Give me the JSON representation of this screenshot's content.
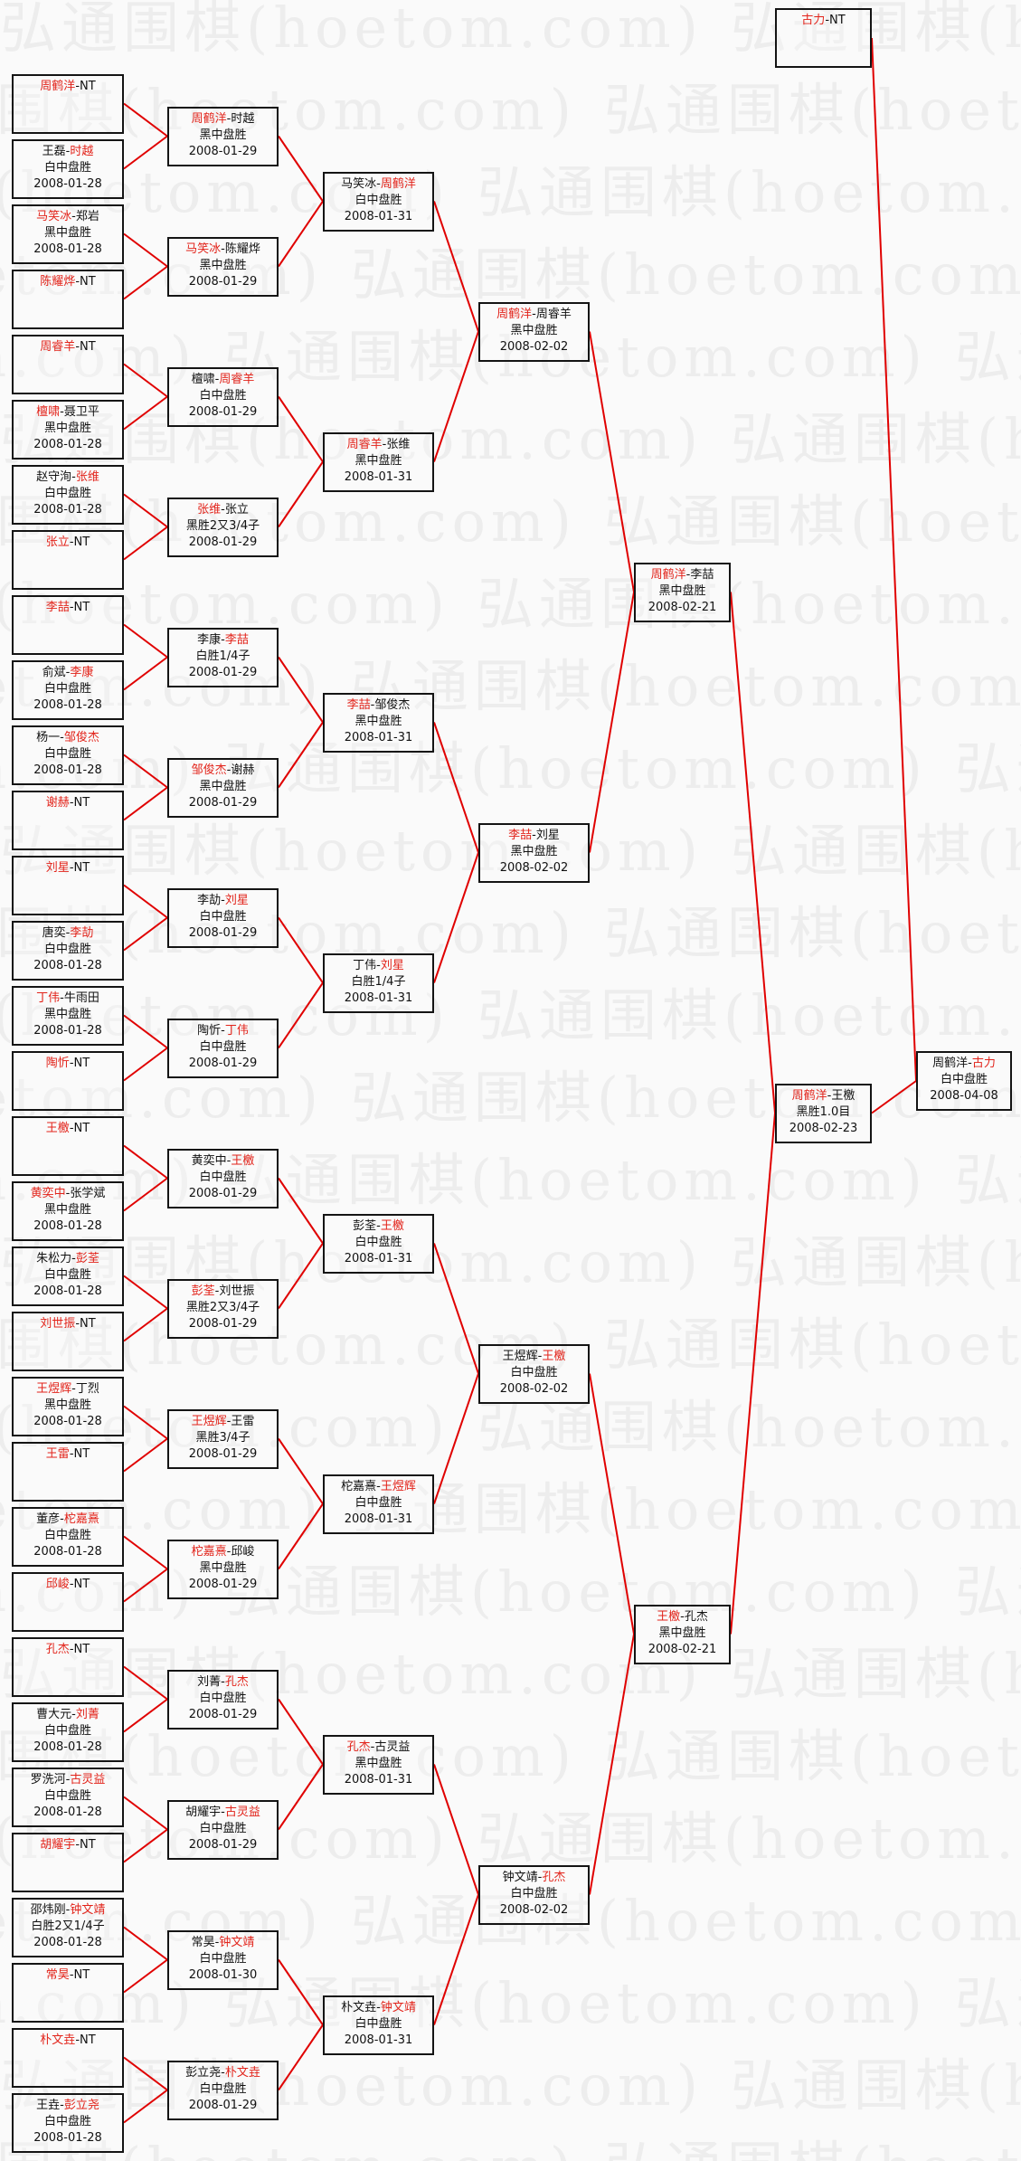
{
  "watermark": "弘通围棋(hoetom.com)",
  "colors": {
    "winner": "#e2231a",
    "connector": "#e00000",
    "border": "#141414"
  },
  "rounds": [
    [
      {
        "p1": "周鹤洋",
        "p2": "NT",
        "winner": 1,
        "result": "",
        "date": ""
      },
      {
        "p1": "王磊",
        "p2": "时越",
        "winner": 2,
        "result": "白中盘胜",
        "date": "2008-01-28"
      },
      {
        "p1": "马笑冰",
        "p2": "郑岩",
        "winner": 1,
        "result": "黑中盘胜",
        "date": "2008-01-28"
      },
      {
        "p1": "陈耀烨",
        "p2": "NT",
        "winner": 1,
        "result": "",
        "date": ""
      },
      {
        "p1": "周睿羊",
        "p2": "NT",
        "winner": 1,
        "result": "",
        "date": ""
      },
      {
        "p1": "檀啸",
        "p2": "聂卫平",
        "winner": 1,
        "result": "黑中盘胜",
        "date": "2008-01-28"
      },
      {
        "p1": "赵守洵",
        "p2": "张维",
        "winner": 2,
        "result": "白中盘胜",
        "date": "2008-01-28"
      },
      {
        "p1": "张立",
        "p2": "NT",
        "winner": 1,
        "result": "",
        "date": ""
      },
      {
        "p1": "李喆",
        "p2": "NT",
        "winner": 1,
        "result": "",
        "date": ""
      },
      {
        "p1": "俞斌",
        "p2": "李康",
        "winner": 2,
        "result": "白中盘胜",
        "date": "2008-01-28"
      },
      {
        "p1": "杨一",
        "p2": "邹俊杰",
        "winner": 2,
        "result": "白中盘胜",
        "date": "2008-01-28"
      },
      {
        "p1": "谢赫",
        "p2": "NT",
        "winner": 1,
        "result": "",
        "date": ""
      },
      {
        "p1": "刘星",
        "p2": "NT",
        "winner": 1,
        "result": "",
        "date": ""
      },
      {
        "p1": "唐奕",
        "p2": "李劼",
        "winner": 2,
        "result": "白中盘胜",
        "date": "2008-01-28"
      },
      {
        "p1": "丁伟",
        "p2": "牛雨田",
        "winner": 1,
        "result": "黑中盘胜",
        "date": "2008-01-28"
      },
      {
        "p1": "陶忻",
        "p2": "NT",
        "winner": 1,
        "result": "",
        "date": ""
      },
      {
        "p1": "王檄",
        "p2": "NT",
        "winner": 1,
        "result": "",
        "date": ""
      },
      {
        "p1": "黄奕中",
        "p2": "张学斌",
        "winner": 1,
        "result": "黑中盘胜",
        "date": "2008-01-28"
      },
      {
        "p1": "朱松力",
        "p2": "彭荃",
        "winner": 2,
        "result": "白中盘胜",
        "date": "2008-01-28"
      },
      {
        "p1": "刘世振",
        "p2": "NT",
        "winner": 1,
        "result": "",
        "date": ""
      },
      {
        "p1": "王煜辉",
        "p2": "丁烈",
        "winner": 1,
        "result": "黑中盘胜",
        "date": "2008-01-28"
      },
      {
        "p1": "王雷",
        "p2": "NT",
        "winner": 1,
        "result": "",
        "date": ""
      },
      {
        "p1": "董彦",
        "p2": "柁嘉熹",
        "winner": 2,
        "result": "白中盘胜",
        "date": "2008-01-28"
      },
      {
        "p1": "邱峻",
        "p2": "NT",
        "winner": 1,
        "result": "",
        "date": ""
      },
      {
        "p1": "孔杰",
        "p2": "NT",
        "winner": 1,
        "result": "",
        "date": ""
      },
      {
        "p1": "曹大元",
        "p2": "刘菁",
        "winner": 2,
        "result": "白中盘胜",
        "date": "2008-01-28"
      },
      {
        "p1": "罗洗河",
        "p2": "古灵益",
        "winner": 2,
        "result": "白中盘胜",
        "date": "2008-01-28"
      },
      {
        "p1": "胡耀宇",
        "p2": "NT",
        "winner": 1,
        "result": "",
        "date": ""
      },
      {
        "p1": "邵炜刚",
        "p2": "钟文靖",
        "winner": 2,
        "result": "白胜2又1/4子",
        "date": "2008-01-28"
      },
      {
        "p1": "常昊",
        "p2": "NT",
        "winner": 1,
        "result": "",
        "date": ""
      },
      {
        "p1": "朴文垚",
        "p2": "NT",
        "winner": 1,
        "result": "",
        "date": ""
      },
      {
        "p1": "王垚",
        "p2": "彭立尧",
        "winner": 2,
        "result": "白中盘胜",
        "date": "2008-01-28"
      }
    ],
    [
      {
        "p1": "周鹤洋",
        "p2": "时越",
        "winner": 1,
        "result": "黑中盘胜",
        "date": "2008-01-29"
      },
      {
        "p1": "马笑冰",
        "p2": "陈耀烨",
        "winner": 1,
        "result": "黑中盘胜",
        "date": "2008-01-29"
      },
      {
        "p1": "檀啸",
        "p2": "周睿羊",
        "winner": 2,
        "result": "白中盘胜",
        "date": "2008-01-29"
      },
      {
        "p1": "张维",
        "p2": "张立",
        "winner": 1,
        "result": "黑胜2又3/4子",
        "date": "2008-01-29"
      },
      {
        "p1": "李康",
        "p2": "李喆",
        "winner": 2,
        "result": "白胜1/4子",
        "date": "2008-01-29"
      },
      {
        "p1": "邹俊杰",
        "p2": "谢赫",
        "winner": 1,
        "result": "黑中盘胜",
        "date": "2008-01-29"
      },
      {
        "p1": "李劼",
        "p2": "刘星",
        "winner": 2,
        "result": "白中盘胜",
        "date": "2008-01-29"
      },
      {
        "p1": "陶忻",
        "p2": "丁伟",
        "winner": 2,
        "result": "白中盘胜",
        "date": "2008-01-29"
      },
      {
        "p1": "黄奕中",
        "p2": "王檄",
        "winner": 2,
        "result": "白中盘胜",
        "date": "2008-01-29"
      },
      {
        "p1": "彭荃",
        "p2": "刘世振",
        "winner": 1,
        "result": "黑胜2又3/4子",
        "date": "2008-01-29"
      },
      {
        "p1": "王煜辉",
        "p2": "王雷",
        "winner": 1,
        "result": "黑胜3/4子",
        "date": "2008-01-29"
      },
      {
        "p1": "柁嘉熹",
        "p2": "邱峻",
        "winner": 1,
        "result": "黑中盘胜",
        "date": "2008-01-29"
      },
      {
        "p1": "刘菁",
        "p2": "孔杰",
        "winner": 2,
        "result": "白中盘胜",
        "date": "2008-01-29"
      },
      {
        "p1": "胡耀宇",
        "p2": "古灵益",
        "winner": 2,
        "result": "白中盘胜",
        "date": "2008-01-29"
      },
      {
        "p1": "常昊",
        "p2": "钟文靖",
        "winner": 2,
        "result": "白中盘胜",
        "date": "2008-01-30"
      },
      {
        "p1": "彭立尧",
        "p2": "朴文垚",
        "winner": 2,
        "result": "白中盘胜",
        "date": "2008-01-29"
      }
    ],
    [
      {
        "p1": "马笑冰",
        "p2": "周鹤洋",
        "winner": 2,
        "result": "白中盘胜",
        "date": "2008-01-31"
      },
      {
        "p1": "周睿羊",
        "p2": "张维",
        "winner": 1,
        "result": "黑中盘胜",
        "date": "2008-01-31"
      },
      {
        "p1": "李喆",
        "p2": "邹俊杰",
        "winner": 1,
        "result": "黑中盘胜",
        "date": "2008-01-31"
      },
      {
        "p1": "丁伟",
        "p2": "刘星",
        "winner": 2,
        "result": "白胜1/4子",
        "date": "2008-01-31"
      },
      {
        "p1": "彭荃",
        "p2": "王檄",
        "winner": 2,
        "result": "白中盘胜",
        "date": "2008-01-31"
      },
      {
        "p1": "柁嘉熹",
        "p2": "王煜辉",
        "winner": 2,
        "result": "白中盘胜",
        "date": "2008-01-31"
      },
      {
        "p1": "孔杰",
        "p2": "古灵益",
        "winner": 1,
        "result": "黑中盘胜",
        "date": "2008-01-31"
      },
      {
        "p1": "朴文垚",
        "p2": "钟文靖",
        "winner": 2,
        "result": "白中盘胜",
        "date": "2008-01-31"
      }
    ],
    [
      {
        "p1": "周鹤洋",
        "p2": "周睿羊",
        "winner": 1,
        "result": "黑中盘胜",
        "date": "2008-02-02"
      },
      {
        "p1": "李喆",
        "p2": "刘星",
        "winner": 1,
        "result": "黑中盘胜",
        "date": "2008-02-02"
      },
      {
        "p1": "王煜辉",
        "p2": "王檄",
        "winner": 2,
        "result": "白中盘胜",
        "date": "2008-02-02"
      },
      {
        "p1": "钟文靖",
        "p2": "孔杰",
        "winner": 2,
        "result": "白中盘胜",
        "date": "2008-02-02"
      }
    ],
    [
      {
        "p1": "周鹤洋",
        "p2": "李喆",
        "winner": 1,
        "result": "黑中盘胜",
        "date": "2008-02-21"
      },
      {
        "p1": "王檄",
        "p2": "孔杰",
        "winner": 1,
        "result": "黑中盘胜",
        "date": "2008-02-21"
      }
    ],
    [
      {
        "p1": "周鹤洋",
        "p2": "王檄",
        "winner": 1,
        "result": "黑胜1.0目",
        "date": "2008-02-23"
      }
    ]
  ],
  "seed": {
    "p1": "古力",
    "p2": "NT",
    "winner": 1,
    "result": "",
    "date": ""
  },
  "final": {
    "p1": "周鹤洋",
    "p2": "古力",
    "winner": 2,
    "result": "白中盘胜",
    "date": "2008-04-08"
  }
}
